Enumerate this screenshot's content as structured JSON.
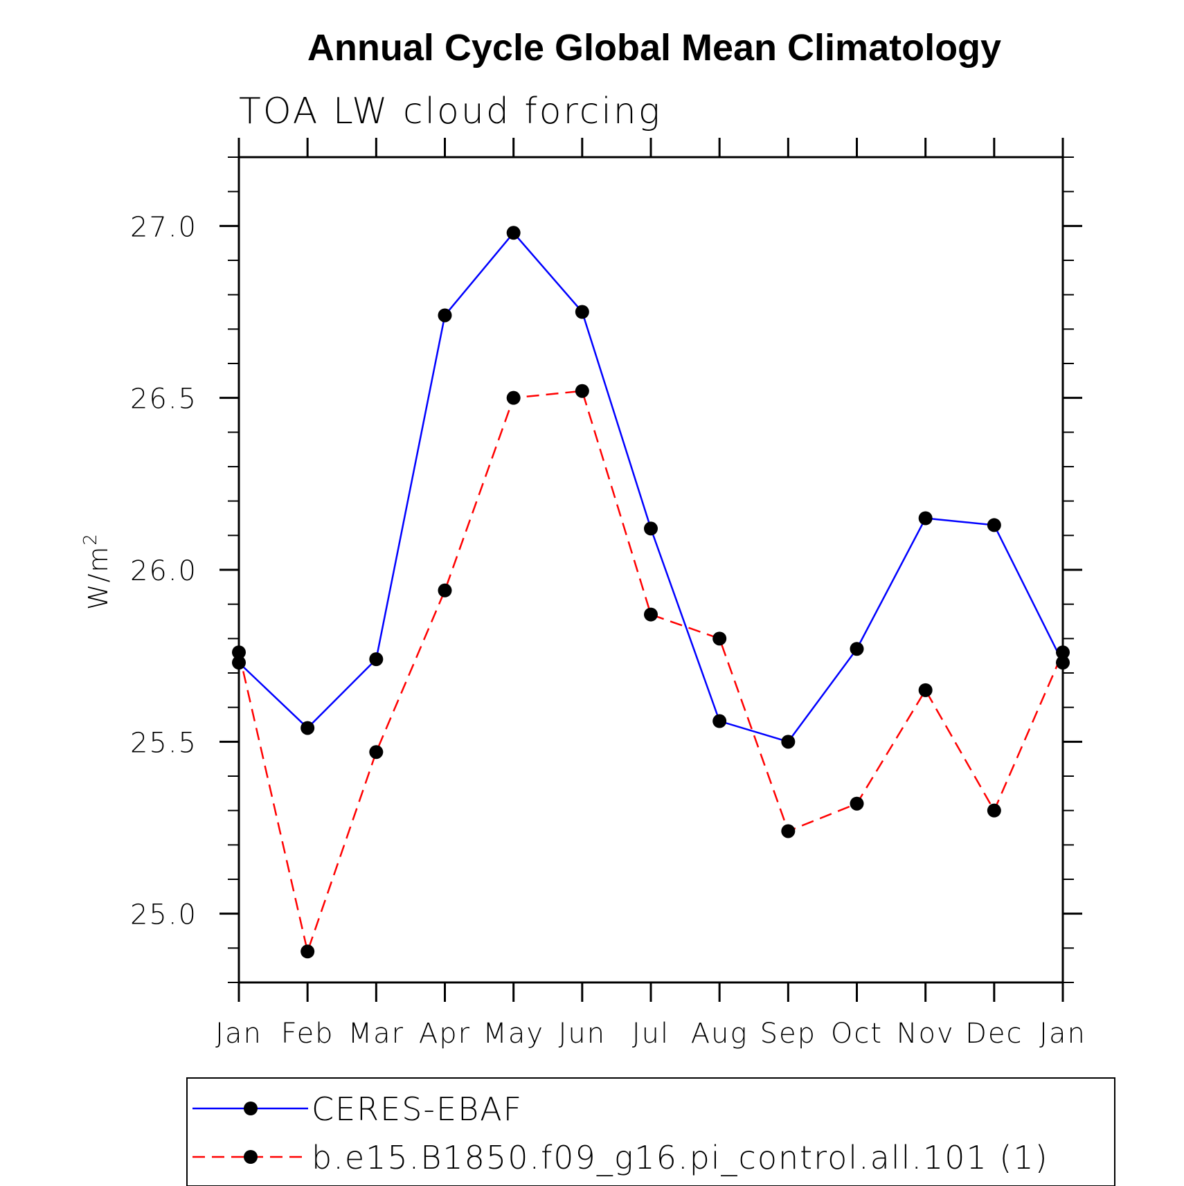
{
  "chart_data": {
    "type": "line",
    "title": "Annual Cycle Global Mean Climatology",
    "subtitle": "TOA LW cloud forcing",
    "xlabel": "",
    "ylabel": "W/m",
    "ylabel_superscript": "2",
    "categories": [
      "Jan",
      "Feb",
      "Mar",
      "Apr",
      "May",
      "Jun",
      "Jul",
      "Aug",
      "Sep",
      "Oct",
      "Nov",
      "Dec",
      "Jan"
    ],
    "ylim": [
      24.8,
      27.2
    ],
    "yticks": [
      25.0,
      25.5,
      26.0,
      26.5,
      27.0
    ],
    "ytick_labels": [
      "25.0",
      "25.5",
      "26.0",
      "26.5",
      "27.0"
    ],
    "legend_position": "bottom",
    "series": [
      {
        "name": "CERES-EBAF",
        "color": "#0000ff",
        "dash": "solid",
        "values": [
          25.73,
          25.54,
          25.74,
          26.74,
          26.98,
          26.75,
          26.12,
          25.56,
          25.5,
          25.77,
          26.15,
          26.13,
          25.73
        ]
      },
      {
        "name": "b.e15.B1850.f09_g16.pi_control.all.101 (1)",
        "color": "#ff0000",
        "dash": "dashed",
        "values": [
          25.76,
          24.89,
          25.47,
          25.94,
          26.5,
          26.52,
          25.87,
          25.8,
          25.24,
          25.32,
          25.65,
          25.3,
          25.76
        ]
      }
    ]
  }
}
